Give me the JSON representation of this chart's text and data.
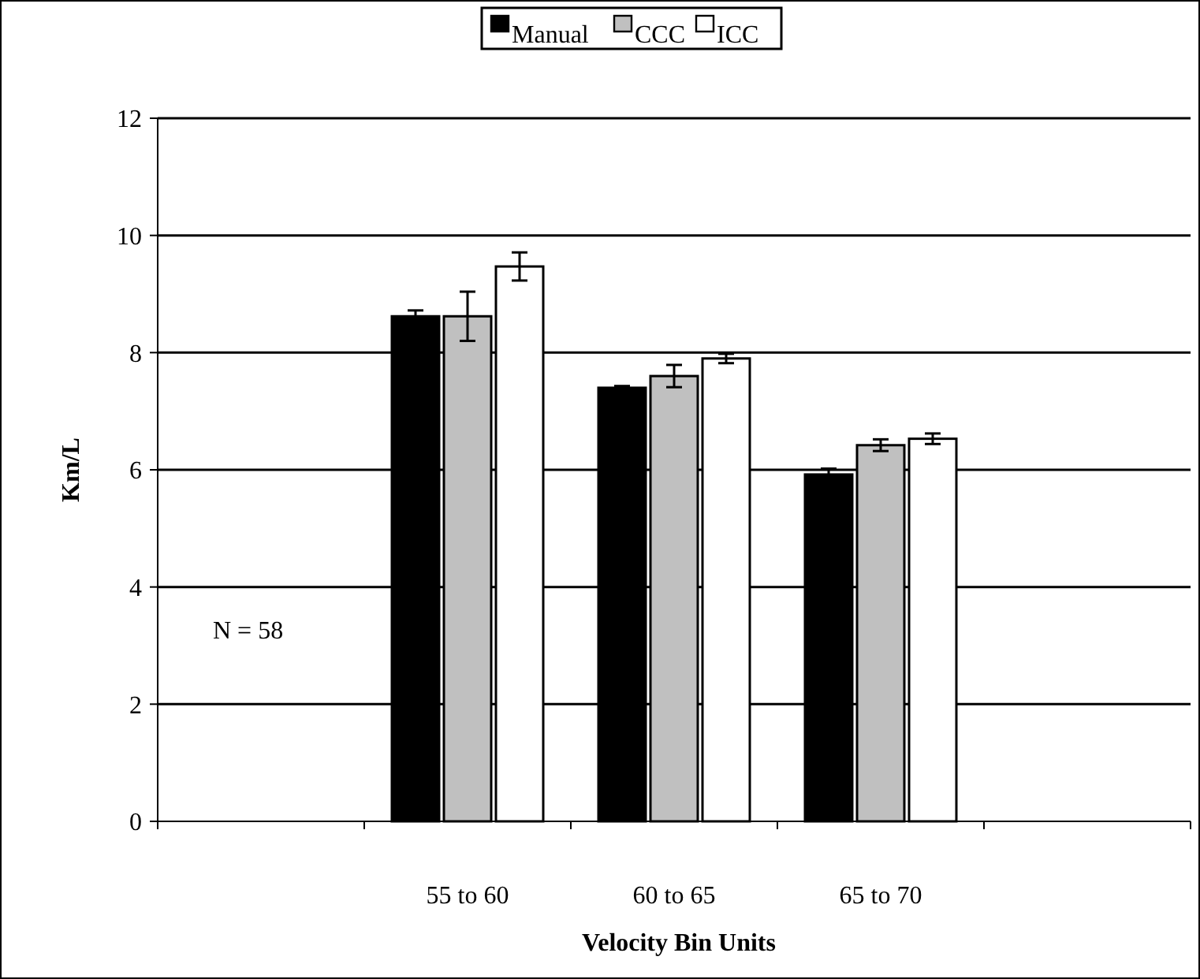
{
  "chart_data": {
    "type": "bar",
    "xlabel": "Velocity Bin Units",
    "ylabel": "Km/L",
    "categories": [
      null,
      "55 to 60",
      "60 to 65",
      "65 to 70",
      null
    ],
    "series": [
      {
        "name": "Manual",
        "color": "#000000",
        "values": [
          null,
          8.62,
          7.4,
          5.92,
          null
        ],
        "errors": [
          null,
          0.1,
          0.03,
          0.1,
          null
        ]
      },
      {
        "name": "CCC",
        "color": "#c0c0c0",
        "values": [
          null,
          8.62,
          7.6,
          6.42,
          null
        ],
        "errors": [
          null,
          0.42,
          0.19,
          0.1,
          null
        ]
      },
      {
        "name": "ICC",
        "color": "#ffffff",
        "values": [
          null,
          9.47,
          7.9,
          6.53,
          null
        ],
        "errors": [
          null,
          0.24,
          0.08,
          0.09,
          null
        ]
      }
    ],
    "ylim": [
      0,
      12
    ],
    "yticks": [
      0,
      2,
      4,
      6,
      8,
      10,
      12
    ],
    "grid": "y",
    "legend": "top",
    "annotations": [
      {
        "text": "N = 58"
      }
    ]
  }
}
